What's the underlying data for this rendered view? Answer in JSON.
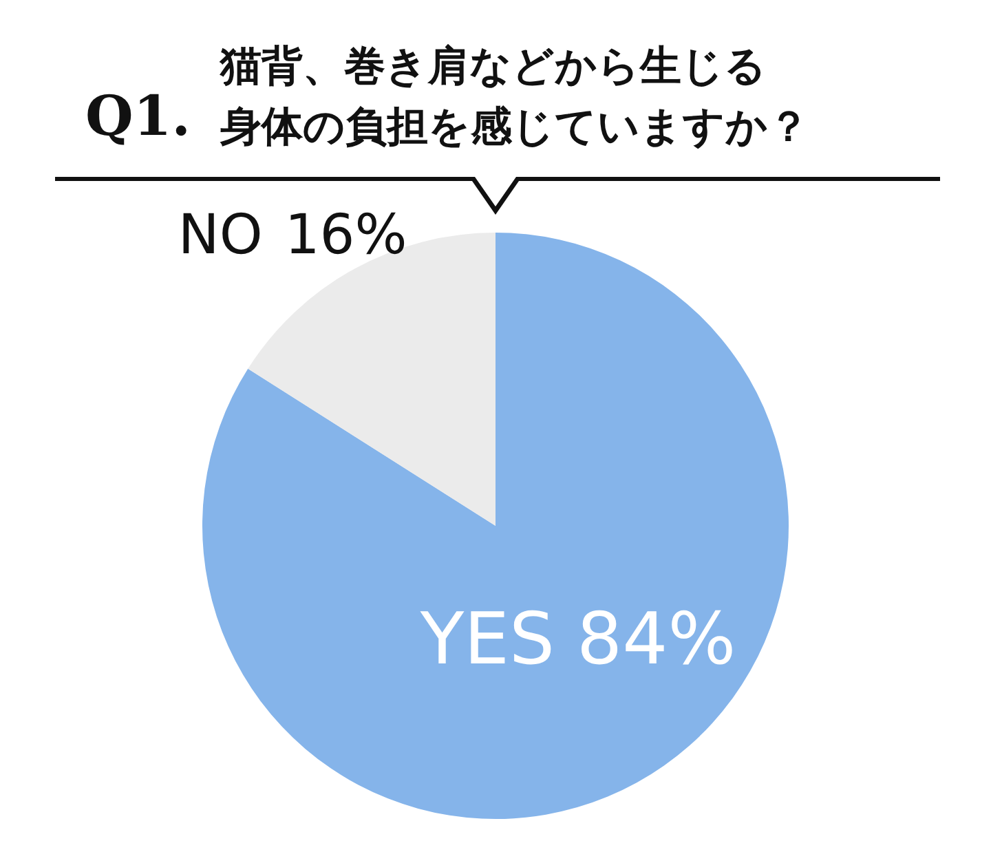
{
  "chart_data": {
    "type": "pie",
    "title": "Q1.",
    "subtitle": "猫背、巻き肩などから生じる身体の負担を感じていますか？",
    "categories": [
      "YES",
      "NO"
    ],
    "values": [
      84,
      16
    ],
    "value_labels": [
      "84%",
      "16%"
    ],
    "colors": [
      "#85b4ea",
      "#ebebeb"
    ]
  }
}
